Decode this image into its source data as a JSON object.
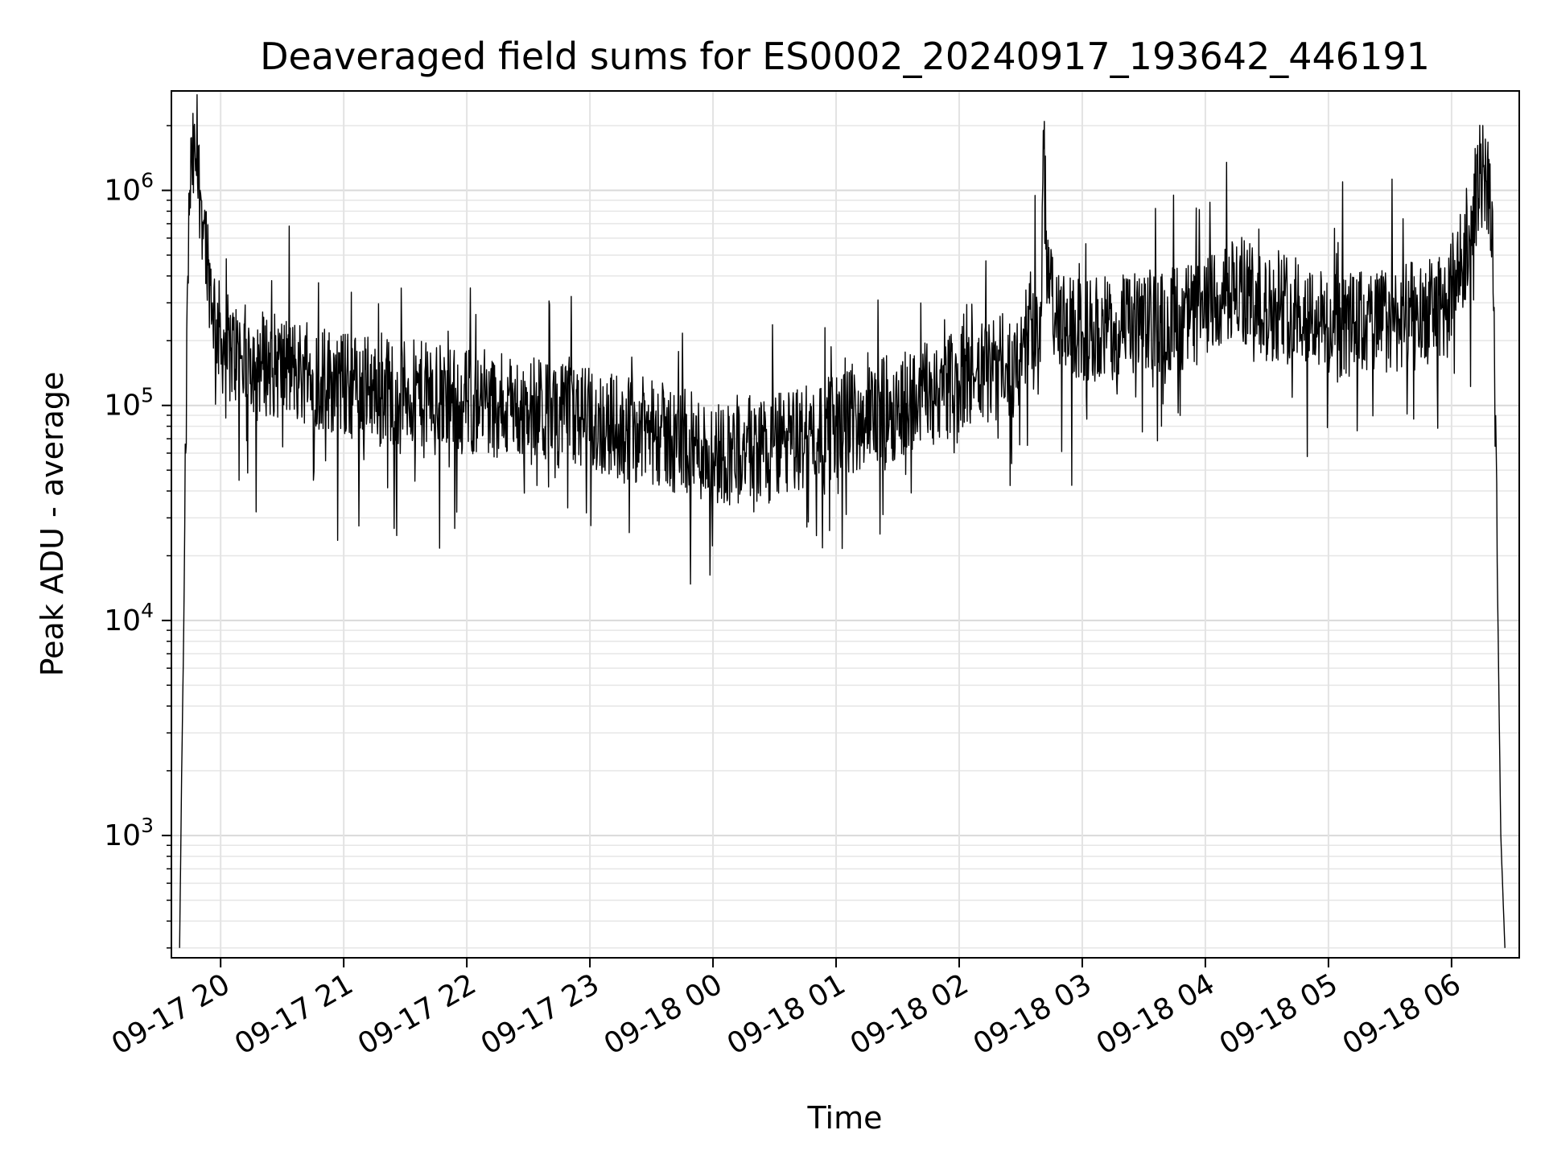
{
  "chart_data": {
    "type": "line",
    "title": "Deaveraged field sums for ES0002_20240917_193642_446191",
    "xlabel": "Time",
    "ylabel": "Peak ADU - average",
    "yscale": "log",
    "ylim": [
      270,
      2900000
    ],
    "xlim": [
      "2024-09-17 19:36",
      "2024-09-18 06:33"
    ],
    "grid": true,
    "x_ticks": [
      {
        "time": "2024-09-17 20:00",
        "label": "09-17 20"
      },
      {
        "time": "2024-09-17 21:00",
        "label": "09-17 21"
      },
      {
        "time": "2024-09-17 22:00",
        "label": "09-17 22"
      },
      {
        "time": "2024-09-17 23:00",
        "label": "09-17 23"
      },
      {
        "time": "2024-09-18 00:00",
        "label": "09-18 00"
      },
      {
        "time": "2024-09-18 01:00",
        "label": "09-18 01"
      },
      {
        "time": "2024-09-18 02:00",
        "label": "09-18 02"
      },
      {
        "time": "2024-09-18 03:00",
        "label": "09-18 03"
      },
      {
        "time": "2024-09-18 04:00",
        "label": "09-18 04"
      },
      {
        "time": "2024-09-18 05:00",
        "label": "09-18 05"
      },
      {
        "time": "2024-09-18 06:00",
        "label": "09-18 06"
      }
    ],
    "y_ticks": [
      {
        "value": 1000,
        "base": "10",
        "exp": "3"
      },
      {
        "value": 10000,
        "base": "10",
        "exp": "4"
      },
      {
        "value": 100000,
        "base": "10",
        "exp": "5"
      },
      {
        "value": 1000000,
        "base": "10",
        "exp": "6"
      }
    ],
    "line_color": "#000000",
    "series": [
      {
        "x": [
          "2024-09-17 19:40",
          "2024-09-17 19:41",
          "2024-09-17 19:42",
          "2024-09-17 19:43",
          "2024-09-17 19:44",
          "2024-09-17 19:45",
          "2024-09-17 19:46",
          "2024-09-17 19:48",
          "2024-09-17 19:50",
          "2024-09-17 19:52",
          "2024-09-17 19:54",
          "2024-09-17 19:56",
          "2024-09-17 19:58",
          "2024-09-17 20:00",
          "2024-09-17 20:05",
          "2024-09-17 20:10",
          "2024-09-17 20:20",
          "2024-09-17 20:30",
          "2024-09-17 20:45",
          "2024-09-17 21:00",
          "2024-09-17 21:30",
          "2024-09-17 22:00",
          "2024-09-17 22:30",
          "2024-09-17 23:00",
          "2024-09-17 23:30",
          "2024-09-17 23:50",
          "2024-09-18 00:00",
          "2024-09-18 00:15",
          "2024-09-18 00:30",
          "2024-09-18 00:45",
          "2024-09-18 01:00",
          "2024-09-18 01:30",
          "2024-09-18 02:00",
          "2024-09-18 02:30",
          "2024-09-18 02:35",
          "2024-09-18 02:40",
          "2024-09-18 02:41",
          "2024-09-18 02:43",
          "2024-09-18 02:48",
          "2024-09-18 03:00",
          "2024-09-18 03:30",
          "2024-09-18 04:00",
          "2024-09-18 04:15",
          "2024-09-18 04:30",
          "2024-09-18 04:45",
          "2024-09-18 05:00",
          "2024-09-18 05:30",
          "2024-09-18 05:55",
          "2024-09-18 06:05",
          "2024-09-18 06:10",
          "2024-09-18 06:14",
          "2024-09-18 06:17",
          "2024-09-18 06:20",
          "2024-09-18 06:24",
          "2024-09-18 06:26"
        ],
        "y": [
          300,
          1900,
          9000,
          60000,
          400000,
          1000000,
          1300000,
          1400000,
          1000000,
          700000,
          450000,
          300000,
          250000,
          200000,
          180000,
          170000,
          160000,
          150000,
          140000,
          125000,
          115000,
          105000,
          95000,
          85000,
          75000,
          65000,
          60000,
          62000,
          65000,
          70000,
          80000,
          100000,
          130000,
          160000,
          250000,
          260000,
          1900000,
          400000,
          230000,
          220000,
          240000,
          270000,
          360000,
          280000,
          300000,
          230000,
          250000,
          280000,
          450000,
          800000,
          1200000,
          1100000,
          800000,
          1000,
          300
        ]
      }
    ]
  }
}
